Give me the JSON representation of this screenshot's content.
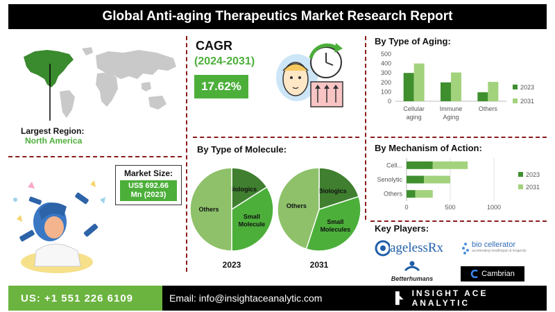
{
  "title": "Global Anti-aging Therapeutics Market Research Report",
  "largest_region": {
    "label": "Largest Region:",
    "value": "North America"
  },
  "market_size": {
    "label": "Market Size:",
    "value_line1": "US$ 692.66",
    "value_line2": "Mn (2023)"
  },
  "cagr": {
    "label": "CAGR",
    "period": "(2024-2031)",
    "value": "17.62%"
  },
  "molecule": {
    "title": "By Type of Molecule:"
  },
  "aging": {
    "title": "By Type of Aging:"
  },
  "mechanism": {
    "title": "By Mechanism of Action:"
  },
  "key_players": {
    "title": "Key Players:",
    "logos": [
      "agelessRx",
      "bio cellerator",
      "Betterhumans",
      "Cambrian"
    ],
    "biocellerator_tagline": "accelerating healthspan & longevity"
  },
  "footer": {
    "phone": "US: +1 551 226 6109",
    "email": "Email: info@insightaceanalytic.com",
    "brand": "INSIGHT ACE ANALYTIC"
  },
  "colors": {
    "dark_green": "#3f8f2f",
    "light_green": "#a3d27d",
    "pie_dark": "#3f7f2f",
    "pie_mid": "#4caf3a",
    "pie_light": "#8ec16a",
    "footer_green": "#6bb43f"
  },
  "chart_data": [
    {
      "type": "bar",
      "title": "By Type of Aging:",
      "categories": [
        "Cellular aging",
        "Immune Aging",
        "Others"
      ],
      "category_lines": [
        [
          "Cellular",
          "aging"
        ],
        [
          "Immune",
          "Aging"
        ],
        [
          "Others"
        ]
      ],
      "series": [
        {
          "name": "2023",
          "values": [
            300,
            200,
            95
          ]
        },
        {
          "name": "2031",
          "values": [
            400,
            305,
            205
          ]
        }
      ],
      "ylim": [
        0,
        500
      ],
      "yticks": [
        0,
        100,
        200,
        300,
        400,
        500
      ],
      "legend": "right",
      "grid": false
    },
    {
      "type": "bar",
      "orientation": "horizontal",
      "title": "By Mechanism of Action:",
      "categories": [
        "Cell...",
        "Senolytic",
        "Others"
      ],
      "series": [
        {
          "name": "2023",
          "values": [
            300,
            200,
            100
          ]
        },
        {
          "name": "2031",
          "values": [
            400,
            300,
            200
          ]
        }
      ],
      "stacked": true,
      "xlim": [
        0,
        1000
      ],
      "xticks": [
        0,
        500,
        1000
      ],
      "legend": "right",
      "grid": true
    },
    {
      "type": "pie",
      "title": "2023",
      "labels": [
        "Biologics",
        "Small Molecule",
        "Others"
      ],
      "label_lines": [
        [
          "Biologics"
        ],
        [
          "Small",
          "Molecule"
        ],
        [
          "Others"
        ]
      ],
      "values": [
        16,
        34,
        50
      ]
    },
    {
      "type": "pie",
      "title": "2031",
      "labels": [
        "Biologics",
        "Small Molecules",
        "Others"
      ],
      "label_lines": [
        [
          "Biologics"
        ],
        [
          "Small",
          "Molecules"
        ],
        [
          "Others"
        ]
      ],
      "values": [
        20,
        35,
        45
      ]
    }
  ]
}
